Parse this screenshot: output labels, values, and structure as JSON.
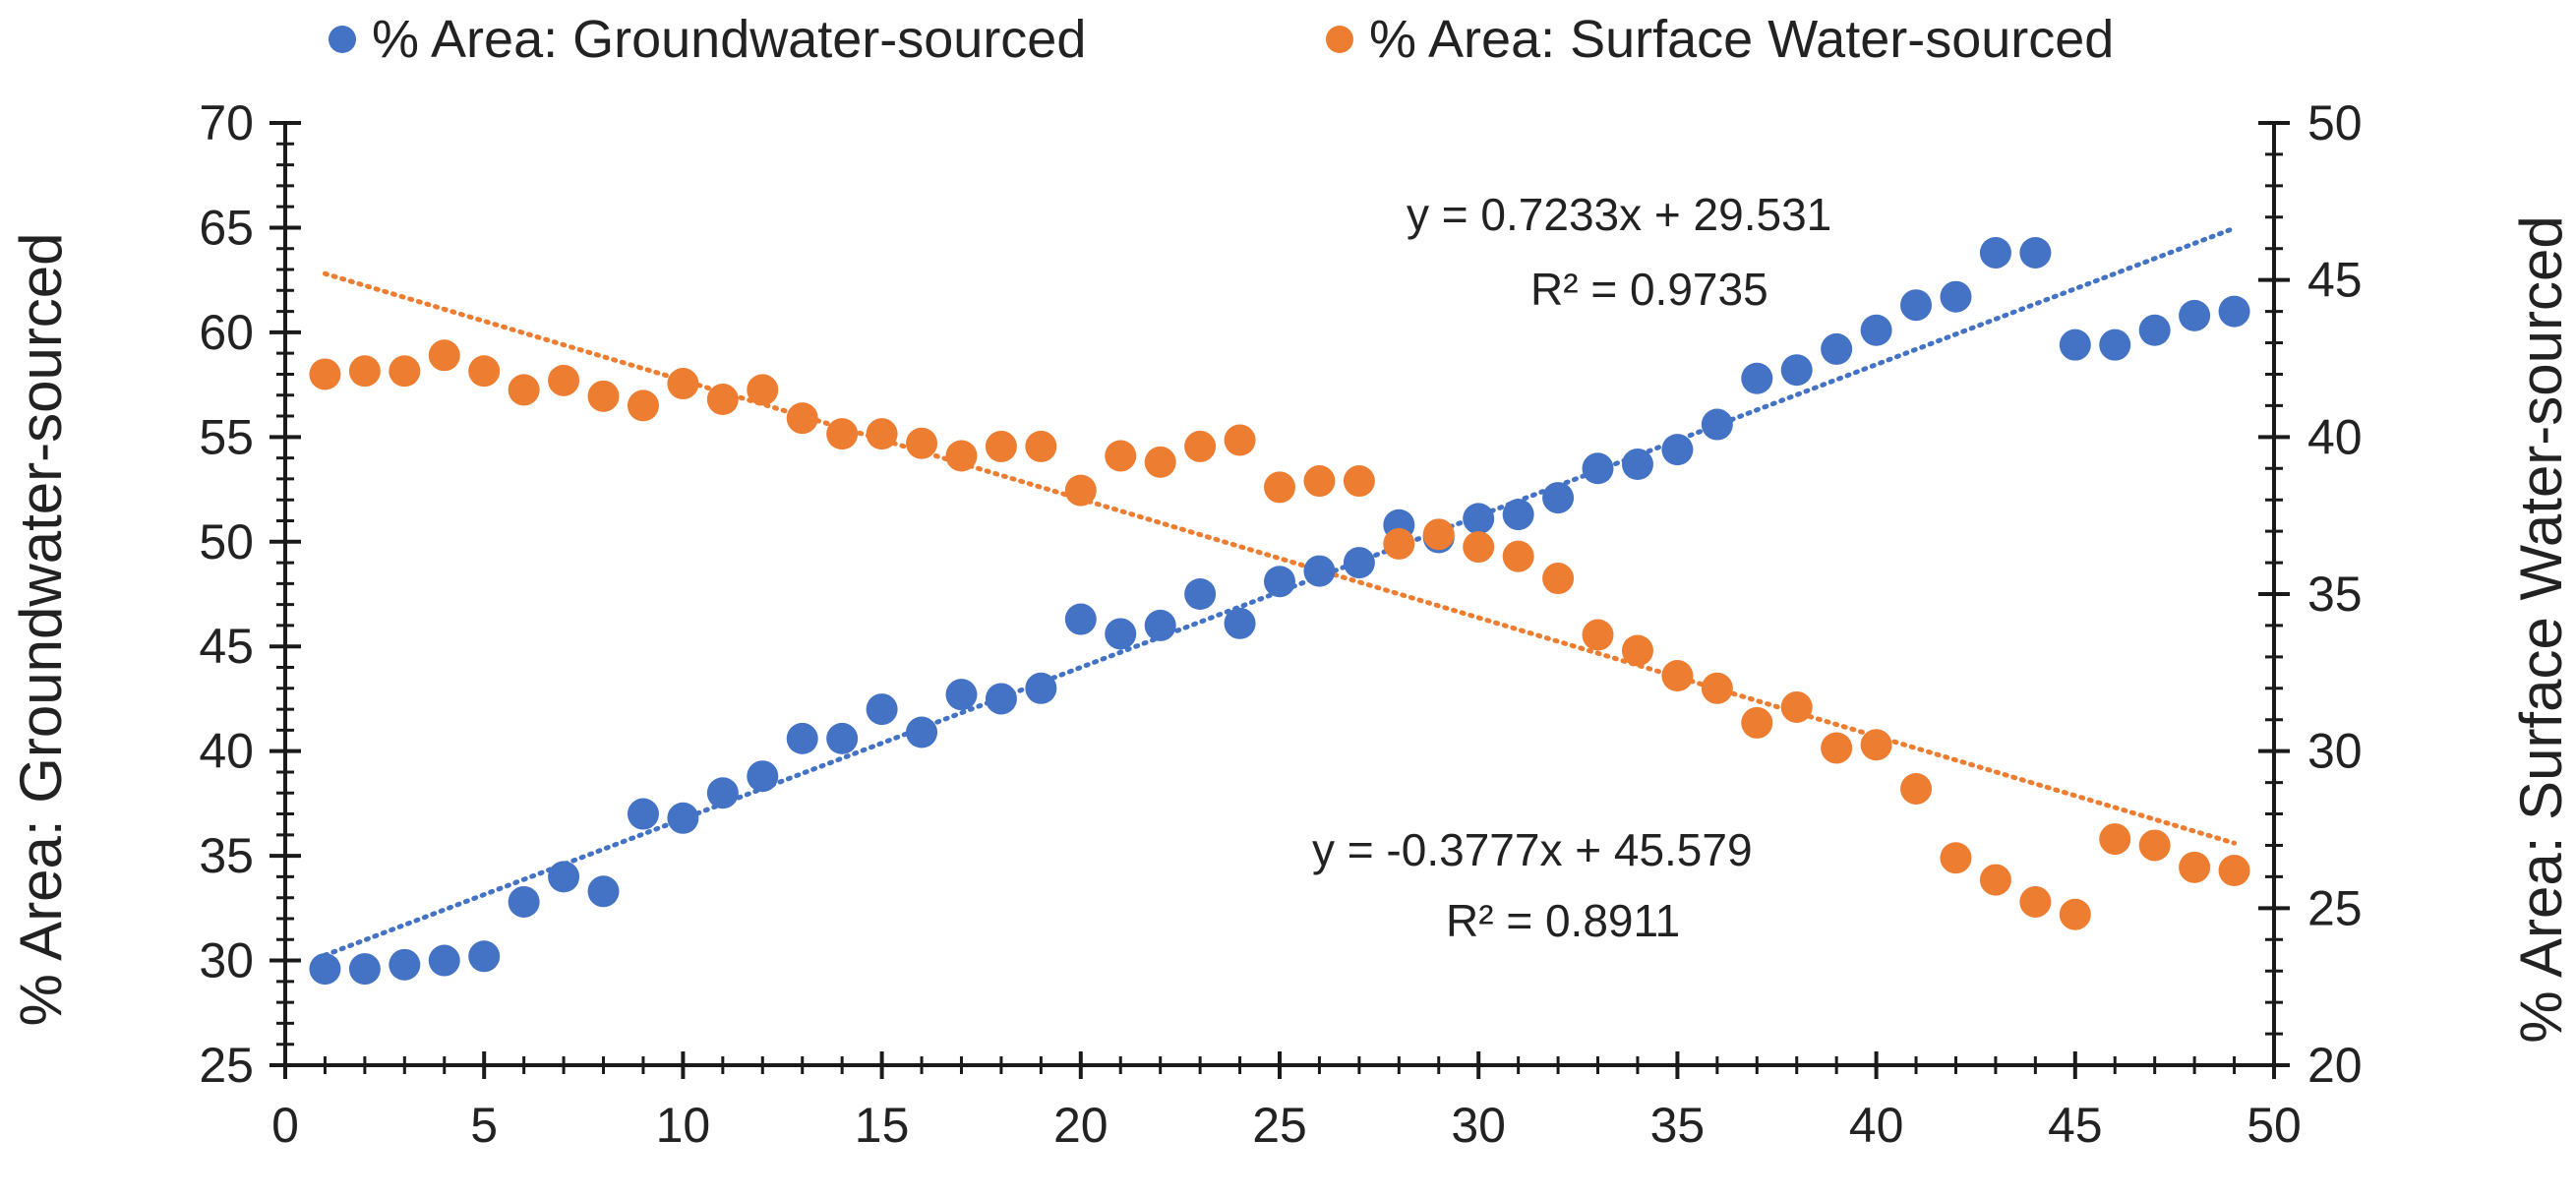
{
  "chart_data": {
    "type": "scatter",
    "title": "",
    "xlabel": "",
    "x_ticks": [
      "0",
      "5",
      "10",
      "15",
      "20",
      "25",
      "30",
      "35",
      "40",
      "45",
      "50"
    ],
    "xlim": [
      0,
      50
    ],
    "ylabel_left": "% Area: Groundwater-sourced",
    "ylim_left": [
      25,
      70
    ],
    "y_ticks_left": [
      "25",
      "30",
      "35",
      "40",
      "45",
      "50",
      "55",
      "60",
      "65",
      "70"
    ],
    "ylabel_right": "% Area: Surface Water-sourced",
    "ylim_right": [
      20,
      50
    ],
    "y_ticks_right": [
      "20",
      "25",
      "30",
      "35",
      "40",
      "45",
      "50"
    ],
    "legend_position": "top",
    "series": [
      {
        "name": "% Area: Groundwater-sourced",
        "axis": "left",
        "color": "#4472C4",
        "x": [
          1,
          2,
          3,
          4,
          5,
          6,
          7,
          8,
          9,
          10,
          11,
          12,
          13,
          14,
          15,
          16,
          17,
          18,
          19,
          20,
          21,
          22,
          23,
          24,
          25,
          26,
          27,
          28,
          29,
          30,
          31,
          32,
          33,
          34,
          35,
          36,
          37,
          38,
          39,
          40,
          41,
          42,
          43,
          44,
          45,
          46,
          47,
          48,
          49
        ],
        "values": [
          29.6,
          29.6,
          29.8,
          30.0,
          30.2,
          32.8,
          34.0,
          33.3,
          37.0,
          36.8,
          38.0,
          38.8,
          40.6,
          40.6,
          42.0,
          40.9,
          42.7,
          42.5,
          43.0,
          46.3,
          45.6,
          46.0,
          47.5,
          46.1,
          48.1,
          48.6,
          49.0,
          50.8,
          50.2,
          51.1,
          51.3,
          52.1,
          53.5,
          53.7,
          54.4,
          55.6,
          57.8,
          58.2,
          59.2,
          60.1,
          61.3,
          61.7,
          63.8,
          63.8,
          59.4,
          59.4,
          60.1,
          60.8,
          61.0
        ],
        "trendline": {
          "slope": 0.7233,
          "intercept": 29.531,
          "equation": "y = 0.7233x + 29.531",
          "r2_label": "R² = 0.9735"
        }
      },
      {
        "name": "% Area: Surface Water-sourced",
        "axis": "right",
        "color": "#ED7D31",
        "x": [
          1,
          2,
          3,
          4,
          5,
          6,
          7,
          8,
          9,
          10,
          11,
          12,
          13,
          14,
          15,
          16,
          17,
          18,
          19,
          20,
          21,
          22,
          23,
          24,
          25,
          26,
          27,
          28,
          29,
          30,
          31,
          32,
          33,
          34,
          35,
          36,
          37,
          38,
          39,
          40,
          41,
          42,
          43,
          44,
          45,
          46,
          47,
          48,
          49
        ],
        "values": [
          42.0,
          42.1,
          42.1,
          42.6,
          42.1,
          41.5,
          41.8,
          41.3,
          41.0,
          41.7,
          41.2,
          41.5,
          40.6,
          40.1,
          40.1,
          39.8,
          39.4,
          39.7,
          39.7,
          38.3,
          39.4,
          39.2,
          39.7,
          39.9,
          38.4,
          38.6,
          38.6,
          36.6,
          36.9,
          36.5,
          36.2,
          35.5,
          33.7,
          33.2,
          32.4,
          32.0,
          30.9,
          31.4,
          30.1,
          30.2,
          28.8,
          26.6,
          25.9,
          25.2,
          24.8,
          27.2,
          27.0,
          26.3,
          26.2
        ],
        "trendline": {
          "slope": -0.3777,
          "intercept": 45.579,
          "equation": "y = -0.3777x + 45.579",
          "r2_label": "R² = 0.8911"
        }
      }
    ]
  }
}
